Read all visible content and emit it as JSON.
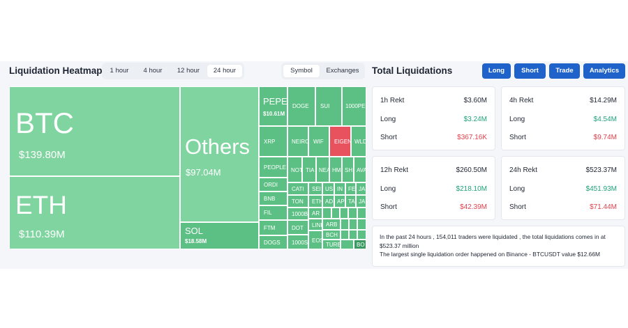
{
  "heatmap": {
    "title": "Liquidation Heatmap",
    "time_tabs": [
      "1 hour",
      "4 hour",
      "12 hour",
      "24 hour"
    ],
    "active_time_tab": "24 hour",
    "view_tabs": [
      "Symbol",
      "Exchanges"
    ],
    "active_view_tab": "Symbol",
    "tiles": {
      "btc": {
        "symbol": "BTC",
        "value": "$139.80M"
      },
      "eth": {
        "symbol": "ETH",
        "value": "$110.39M"
      },
      "others": {
        "symbol": "Others",
        "value": "$97.04M"
      },
      "sol": {
        "symbol": "SOL",
        "value": "$18.58M"
      },
      "pepe": {
        "symbol": "PEPE",
        "value": "$10.61M"
      },
      "doge": "DOGE",
      "sui": "SUI",
      "1000pe": "1000PE",
      "xrp": "XRP",
      "neiro": "NEIRO",
      "wif": "WIF",
      "eigen": "EIGEN",
      "wld": "WLD",
      "people": "PEOPLE",
      "not": "NOT",
      "tia": "TIA",
      "nea": "NEA",
      "hm": "HM",
      "sh": "SH",
      "ava": "AVA",
      "ordi": "ORDI",
      "cati": "CATI",
      "sei": "SEI",
      "us": "US",
      "in": "IN",
      "fe": "FE",
      "jas": "JAS",
      "bnb": "BNB",
      "ton": "TON",
      "eth2": "ETH",
      "ad": "AD",
      "ap": "AP",
      "ta": "TA",
      "ja": "JA",
      "fil": "FIL",
      "1000b": "1000B",
      "ar": "AR",
      "ftm": "FTM",
      "dot": "DOT",
      "arb": "ARB",
      "link": "LINK",
      "bch": "BCH",
      "dogs": "DOGS",
      "1000s": "1000S",
      "eos": "EOS",
      "ture": "TURE",
      "bo": "BO"
    }
  },
  "total": {
    "title": "Total Liquidations",
    "buttons": [
      "Long",
      "Short",
      "Trade",
      "Analytics"
    ],
    "cards": [
      {
        "label": "1h Rekt",
        "total": "$3.60M",
        "long_label": "Long",
        "long": "$3.24M",
        "short_label": "Short",
        "short": "$367.16K"
      },
      {
        "label": "4h Rekt",
        "total": "$14.29M",
        "long_label": "Long",
        "long": "$4.54M",
        "short_label": "Short",
        "short": "$9.74M"
      },
      {
        "label": "12h Rekt",
        "total": "$260.50M",
        "long_label": "Long",
        "long": "$218.10M",
        "short_label": "Short",
        "short": "$42.39M"
      },
      {
        "label": "24h Rekt",
        "total": "$523.37M",
        "long_label": "Long",
        "long": "$451.93M",
        "short_label": "Short",
        "short": "$71.44M"
      }
    ],
    "summary_line1": "In the past 24 hours , 154,011 traders were liquidated , the total liquidations comes in at $523.37 million",
    "summary_line2": "The largest single liquidation order happened on Binance - BTCUSDT value $12.66M"
  },
  "colors": {
    "green_tile": "#5cc084",
    "green_big": "#7fd4a0",
    "red_tile": "#e8525f",
    "accent": "#1f62c9",
    "long": "#1fa37a",
    "short": "#e23f4b"
  }
}
